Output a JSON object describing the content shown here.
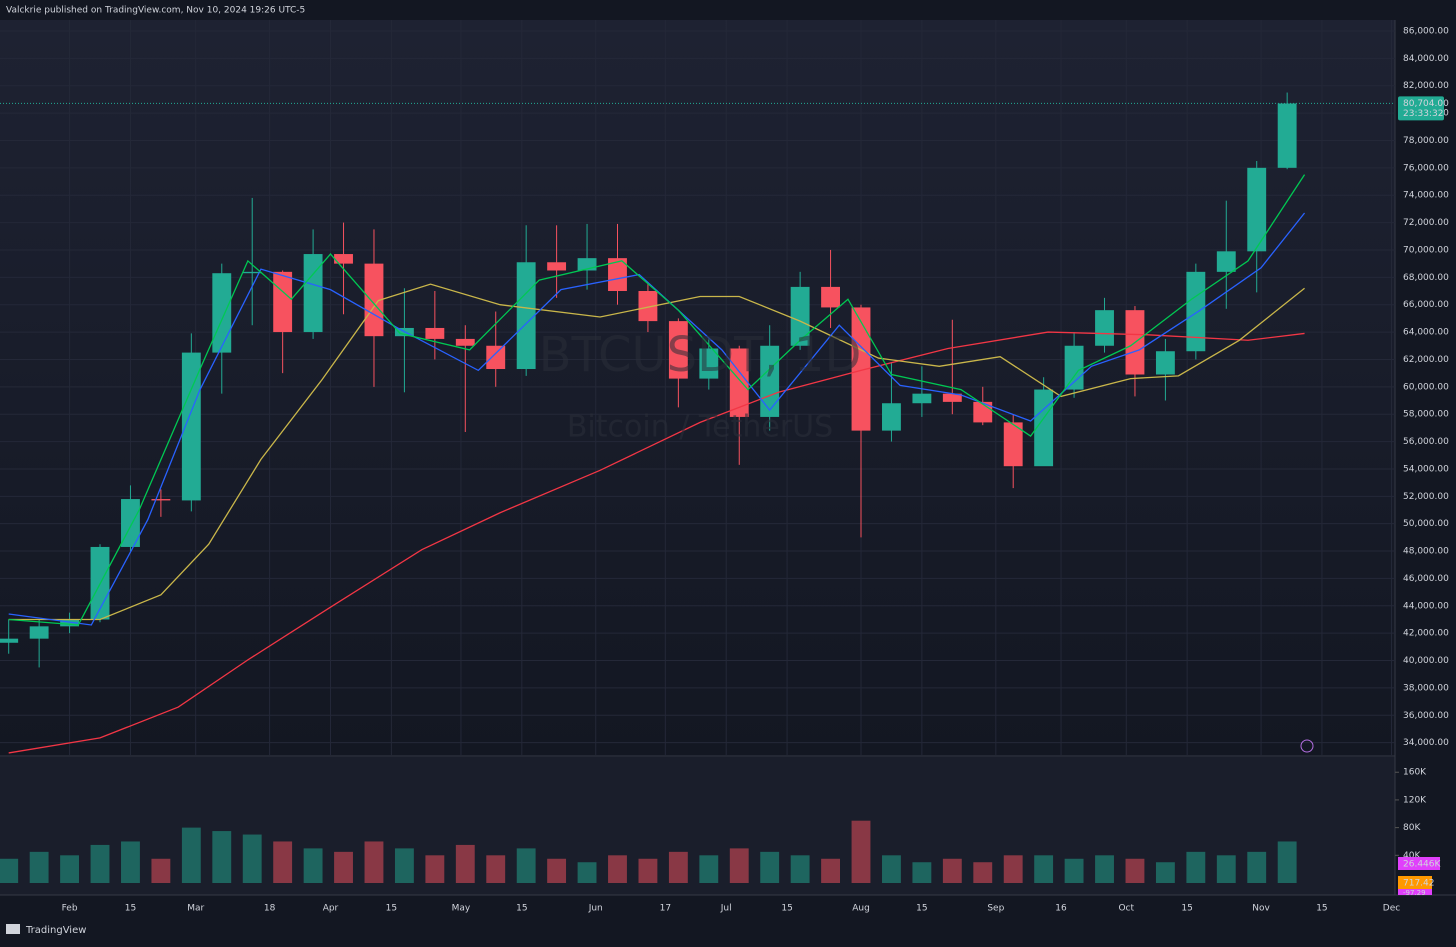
{
  "header": "Valckrie published on TradingView.com, Nov 10, 2024 19:26 UTC-5",
  "footer": "TradingView",
  "chart_data": {
    "type": "candlestick",
    "title": "BTCUSDT, 1D",
    "subtitle": "Bitcoin / TetherUS",
    "up_color": "#22ab94",
    "down_color": "#f7525f",
    "xlim": [
      16,
      336.8
    ],
    "xticks": [
      {
        "value": 32,
        "label": "Feb"
      },
      {
        "value": 46,
        "label": "15"
      },
      {
        "value": 61,
        "label": "Mar"
      },
      {
        "value": 78,
        "label": "18"
      },
      {
        "value": 92,
        "label": "Apr"
      },
      {
        "value": 106,
        "label": "15"
      },
      {
        "value": 122,
        "label": "May"
      },
      {
        "value": 136,
        "label": "15"
      },
      {
        "value": 153,
        "label": "Jun"
      },
      {
        "value": 169,
        "label": "17"
      },
      {
        "value": 183,
        "label": "Jul"
      },
      {
        "value": 197,
        "label": "15"
      },
      {
        "value": 214,
        "label": "Aug"
      },
      {
        "value": 228,
        "label": "15"
      },
      {
        "value": 245,
        "label": "Sep"
      },
      {
        "value": 260,
        "label": "16"
      },
      {
        "value": 275,
        "label": "Oct"
      },
      {
        "value": 289,
        "label": "15"
      },
      {
        "value": 306,
        "label": "Nov"
      },
      {
        "value": 320,
        "label": "15"
      },
      {
        "value": 336,
        "label": "Dec"
      }
    ],
    "ylim": [
      33100,
      86800
    ],
    "yticks": [
      {
        "value": 34000,
        "label": "34,000.00"
      },
      {
        "value": 36000,
        "label": "36,000.00"
      },
      {
        "value": 38000,
        "label": "38,000.00"
      },
      {
        "value": 40000,
        "label": "40,000.00"
      },
      {
        "value": 42000,
        "label": "42,000.00"
      },
      {
        "value": 44000,
        "label": "44,000.00"
      },
      {
        "value": 46000,
        "label": "46,000.00"
      },
      {
        "value": 48000,
        "label": "48,000.00"
      },
      {
        "value": 50000,
        "label": "50,000.00"
      },
      {
        "value": 52000,
        "label": "52,000.00"
      },
      {
        "value": 54000,
        "label": "54,000.00"
      },
      {
        "value": 56000,
        "label": "56,000.00"
      },
      {
        "value": 58000,
        "label": "58,000.00"
      },
      {
        "value": 60000,
        "label": "60,000.00"
      },
      {
        "value": 62000,
        "label": "62,000.00"
      },
      {
        "value": 64000,
        "label": "64,000.00"
      },
      {
        "value": 66000,
        "label": "66,000.00"
      },
      {
        "value": 68000,
        "label": "68,000.00"
      },
      {
        "value": 70000,
        "label": "70,000.00"
      },
      {
        "value": 72000,
        "label": "72,000.00"
      },
      {
        "value": 74000,
        "label": "74,000.00"
      },
      {
        "value": 76000,
        "label": "76,000.00"
      },
      {
        "value": 78000,
        "label": "78,000.00"
      },
      {
        "value": 80000,
        "label": "80,000.00"
      },
      {
        "value": 82000,
        "label": "82,000.00"
      },
      {
        "value": 84000,
        "label": "84,000.00"
      },
      {
        "value": 86000,
        "label": "86,000.00"
      }
    ],
    "grid": true,
    "x": [
      18,
      25,
      32,
      39,
      46,
      53,
      60,
      67,
      74,
      81,
      88,
      95,
      102,
      109,
      116,
      123,
      130,
      137,
      144,
      151,
      158,
      165,
      172,
      179,
      186,
      193,
      200,
      207,
      214,
      221,
      228,
      235,
      242,
      249,
      256,
      263,
      270,
      277,
      284,
      291,
      298,
      305,
      312
    ],
    "open": [
      41300,
      41600,
      42500,
      43000,
      48300,
      51800,
      51700,
      62500,
      68300,
      68400,
      64000,
      69700,
      69000,
      63700,
      64300,
      63500,
      63000,
      61300,
      69100,
      68500,
      69400,
      67000,
      64800,
      60600,
      62800,
      57800,
      63000,
      67300,
      65800,
      56800,
      58800,
      59500,
      58900,
      57400,
      54200,
      59800,
      63000,
      65600,
      60900,
      62600,
      68400,
      69900,
      76000
    ],
    "high": [
      43000,
      43000,
      43500,
      48500,
      52800,
      52500,
      63900,
      69000,
      73800,
      68500,
      71500,
      72000,
      71500,
      67200,
      67000,
      64500,
      65500,
      71800,
      71800,
      71900,
      71900,
      67500,
      65000,
      63600,
      63000,
      64500,
      68400,
      70000,
      66000,
      61800,
      61500,
      64900,
      60000,
      58000,
      60700,
      64000,
      66500,
      65900,
      63500,
      69000,
      73600,
      76500,
      81500
    ],
    "low": [
      40500,
      39500,
      42000,
      42800,
      48000,
      50500,
      50900,
      59500,
      64500,
      61000,
      63500,
      65300,
      60000,
      59600,
      62000,
      56700,
      60000,
      60800,
      66500,
      67100,
      66000,
      64000,
      58500,
      59800,
      54300,
      56800,
      62700,
      64300,
      49000,
      56000,
      57800,
      58000,
      57200,
      52600,
      54500,
      59200,
      62500,
      59300,
      59000,
      62000,
      65700,
      66900,
      75900
    ],
    "close": [
      41600,
      42500,
      43000,
      48300,
      51800,
      51700,
      62500,
      68300,
      68400,
      64000,
      69700,
      69000,
      63700,
      64300,
      63500,
      63000,
      61300,
      69100,
      68500,
      69400,
      67000,
      64800,
      60600,
      62800,
      57800,
      63000,
      67300,
      65800,
      56800,
      58800,
      59500,
      58900,
      57400,
      54200,
      59800,
      63000,
      65600,
      60900,
      62600,
      68400,
      69900,
      76000,
      80700
    ],
    "lines": [
      {
        "color": "#f23645",
        "x": [
          18,
          39,
          57,
          73,
          92,
          113,
          131,
          154,
          177,
          195,
          214,
          234,
          257,
          280,
          303,
          316
        ],
        "values": [
          33250,
          34350,
          36600,
          40050,
          43900,
          48100,
          50800,
          53900,
          57400,
          59600,
          61200,
          62800,
          64000,
          63800,
          63400,
          63900
        ]
      },
      {
        "color": "#c9b64a",
        "x": [
          18,
          39,
          53,
          64,
          76,
          90,
          103,
          115,
          131,
          154,
          177,
          186,
          200,
          218,
          232,
          246,
          260,
          276,
          287,
          301,
          316
        ],
        "values": [
          43000,
          43000,
          44800,
          48500,
          54700,
          60500,
          66300,
          67500,
          66000,
          65100,
          66600,
          66600,
          64800,
          62100,
          61500,
          62200,
          59300,
          60600,
          60800,
          63400,
          67200
        ]
      },
      {
        "color": "#2962ff",
        "x": [
          18,
          37,
          50,
          62,
          76,
          92,
          108,
          126,
          145,
          163,
          182,
          193,
          209,
          223,
          237,
          253,
          267,
          278,
          292,
          306,
          316
        ],
        "values": [
          43400,
          42600,
          50300,
          59800,
          68600,
          67100,
          64200,
          61200,
          67100,
          68200,
          62700,
          58300,
          64500,
          60100,
          59400,
          57500,
          61500,
          62700,
          65600,
          68700,
          72700
        ]
      },
      {
        "color": "#00c853",
        "x": [
          18,
          34,
          48,
          62,
          73,
          83,
          92,
          108,
          124,
          140,
          159,
          172,
          188,
          200,
          211,
          221,
          237,
          253,
          264,
          276,
          290,
          303,
          316
        ],
        "values": [
          43000,
          42600,
          51000,
          61300,
          69200,
          66400,
          69700,
          63900,
          62700,
          67800,
          69200,
          65600,
          59800,
          63400,
          66400,
          60900,
          59800,
          56400,
          61200,
          63000,
          66400,
          69200,
          75500
        ]
      }
    ],
    "last_price": {
      "value": 80704,
      "label": "80,704.00"
    },
    "countdown": "23:33:32",
    "volume": {
      "ylim": [
        0,
        182000
      ],
      "yticks": [
        {
          "value": 40000,
          "label": "40K"
        },
        {
          "value": 80000,
          "label": "80K"
        },
        {
          "value": 120000,
          "label": "120K"
        },
        {
          "value": 160000,
          "label": "160K"
        }
      ],
      "values": [
        35000,
        45000,
        40000,
        55000,
        60000,
        35000,
        80000,
        75000,
        70000,
        60000,
        50000,
        45000,
        60000,
        50000,
        40000,
        55000,
        40000,
        50000,
        35000,
        30000,
        40000,
        35000,
        45000,
        40000,
        50000,
        45000,
        40000,
        35000,
        90000,
        40000,
        30000,
        35000,
        30000,
        40000,
        40000,
        35000,
        40000,
        35000,
        30000,
        45000,
        40000,
        45000,
        60000
      ],
      "ma_color": "#e040fb",
      "ma_label": "26.446K",
      "osc_label_1": "717.42",
      "osc_label_2": "-97.29"
    }
  }
}
